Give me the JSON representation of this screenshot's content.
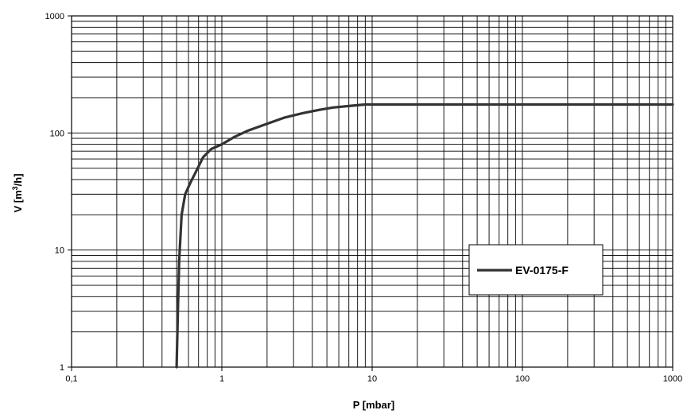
{
  "chart_data": {
    "type": "line",
    "xlabel": "P [mbar]",
    "ylabel_main": "V [m",
    "ylabel_sup": "3",
    "ylabel_tail": "/h]",
    "x_scale": "log",
    "y_scale": "log",
    "xlim": [
      0.1,
      1000
    ],
    "ylim": [
      1,
      1000
    ],
    "x_ticks": [
      {
        "value": 0.1,
        "label": "0,1"
      },
      {
        "value": 1,
        "label": "1"
      },
      {
        "value": 10,
        "label": "10"
      },
      {
        "value": 100,
        "label": "100"
      },
      {
        "value": 1000,
        "label": "1000"
      }
    ],
    "y_ticks": [
      {
        "value": 1,
        "label": "1"
      },
      {
        "value": 10,
        "label": "10"
      },
      {
        "value": 100,
        "label": "100"
      },
      {
        "value": 1000,
        "label": "1000"
      }
    ],
    "grid": true,
    "legend_position": "bottom-right",
    "series": [
      {
        "name": "EV-0175-F",
        "color": "#333333",
        "x": [
          0.5,
          0.51,
          0.52,
          0.54,
          0.57,
          0.62,
          0.68,
          0.75,
          0.85,
          1.0,
          1.2,
          1.5,
          2.0,
          2.6,
          3.5,
          4.5,
          5.5,
          7.0,
          9.0,
          10.0,
          100.0,
          1000.0
        ],
        "y": [
          1,
          3,
          8,
          20,
          30,
          38,
          48,
          62,
          73,
          80,
          92,
          105,
          120,
          135,
          148,
          158,
          165,
          170,
          175,
          175,
          175,
          175
        ]
      }
    ]
  }
}
